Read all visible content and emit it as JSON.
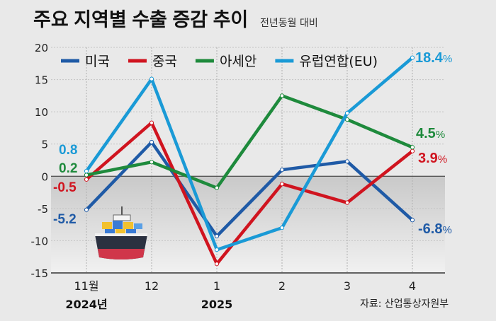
{
  "header": {
    "title": "주요 지역별 수출 증감 추이",
    "subtitle": "전년동월 대비"
  },
  "source": "자료: 산업통상자원부",
  "colors": {
    "us": "#1f5aa6",
    "china": "#d0141f",
    "asean": "#1e8a3c",
    "eu": "#1a9ad6",
    "negative_band_top": "#c9c9c9",
    "negative_band_bottom": "#f1f1f1"
  },
  "ship_icon": "container-ship-icon",
  "chart_data": {
    "type": "line",
    "categories": [
      "11월",
      "12",
      "1",
      "2",
      "3",
      "4"
    ],
    "year_labels": [
      {
        "category": "11월",
        "text": "2024년"
      },
      {
        "category": "1",
        "text": "2025"
      }
    ],
    "ylim": [
      -15,
      20
    ],
    "yticks": [
      20,
      15,
      10,
      5,
      0,
      -5,
      -10,
      -15
    ],
    "ytick_labels": [
      "20",
      "15",
      "10",
      "5",
      "0",
      "-5",
      "-10",
      "-15"
    ],
    "legend_position": "top",
    "series": [
      {
        "name": "미국",
        "key": "us",
        "values": [
          -5.2,
          5.3,
          -9.3,
          1.0,
          2.3,
          -6.8
        ]
      },
      {
        "name": "중국",
        "key": "china",
        "values": [
          -0.5,
          8.3,
          -13.6,
          -1.2,
          -4.1,
          3.9
        ]
      },
      {
        "name": "아세안",
        "key": "asean",
        "values": [
          0.2,
          2.2,
          -1.8,
          12.5,
          8.8,
          4.5
        ]
      },
      {
        "name": "유럽연합(EU)",
        "key": "eu",
        "values": [
          0.8,
          15.1,
          -11.4,
          -8.0,
          9.8,
          18.4
        ]
      }
    ],
    "data_labels": [
      {
        "series": "eu",
        "index": 0,
        "text": "0.8"
      },
      {
        "series": "asean",
        "index": 0,
        "text": "0.2"
      },
      {
        "series": "china",
        "index": 0,
        "text": "-0.5"
      },
      {
        "series": "us",
        "index": 0,
        "text": "-5.2"
      },
      {
        "series": "eu",
        "index": 5,
        "num": "18.4",
        "unit": "%"
      },
      {
        "series": "asean",
        "index": 5,
        "num": "4.5",
        "unit": "%"
      },
      {
        "series": "china",
        "index": 5,
        "num": "3.9",
        "unit": "%"
      },
      {
        "series": "us",
        "index": 5,
        "num": "-6.8",
        "unit": "%"
      }
    ]
  }
}
